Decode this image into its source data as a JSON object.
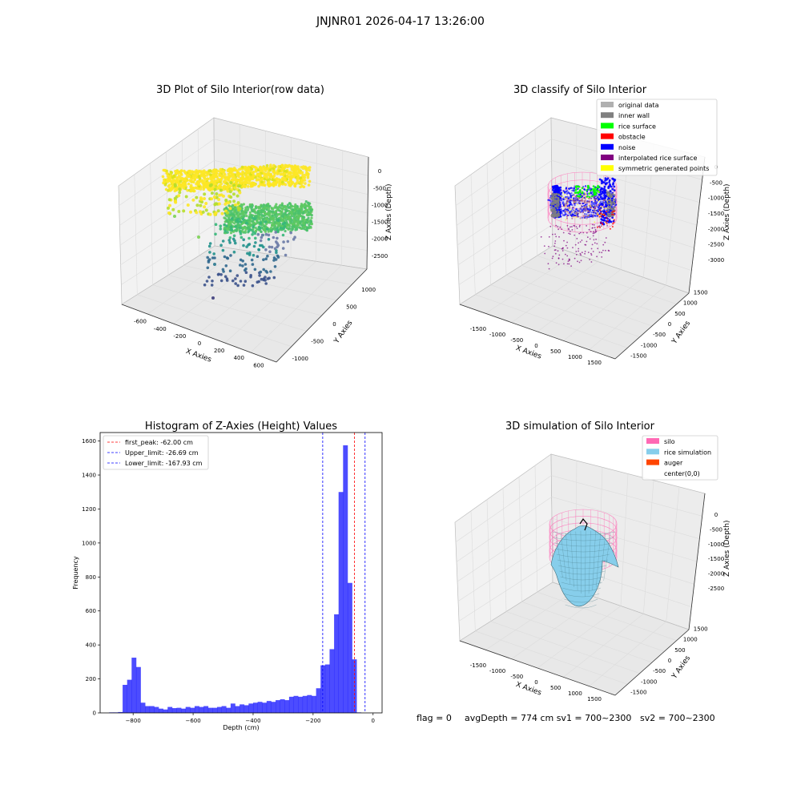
{
  "suptitle": "JNJNR01 2026-04-17 13:26:00",
  "colors": {
    "grey": "#b0b0b0",
    "darkgrey": "#808080",
    "green": "#00ff00",
    "red": "#ff0000",
    "blue": "#0000ff",
    "purple": "#800080",
    "yellow": "#ffff00",
    "pink": "#ff69b4",
    "skyblue": "#87ceeb",
    "orange": "#ff4500",
    "hist_bar": "#0000ff",
    "viridis_yellow": "#fde725",
    "viridis_green": "#5ec962",
    "viridis_teal": "#21918c",
    "viridis_blue": "#3b528b",
    "viridis_purple": "#440154"
  },
  "chart_data": [
    {
      "type": "scatter",
      "title": "3D Plot of Silo Interior(row data)",
      "xlabel": "X Axies",
      "ylabel": "Y Axies",
      "zlabel": "Z Axies (Depth)",
      "x_ticks": [
        "-600",
        "-400",
        "-200",
        "0",
        "200",
        "400",
        "600"
      ],
      "y_ticks": [
        "-1000",
        "-500",
        "0",
        "500",
        "1000"
      ],
      "z_ticks": [
        "0",
        "-500",
        "-1000",
        "-1500",
        "-2000",
        "-2500"
      ],
      "grid": true
    },
    {
      "type": "scatter",
      "title": "3D classify of Silo Interior",
      "xlabel": "X Axies",
      "ylabel": "Y Axies",
      "zlabel": "Z Axies (Depth)",
      "x_ticks": [
        "-1500",
        "-1000",
        "-500",
        "0",
        "500",
        "1000",
        "1500"
      ],
      "y_ticks": [
        "-1500",
        "-1000",
        "-500",
        "0",
        "500",
        "1000",
        "1500"
      ],
      "z_ticks": [
        "0",
        "-500",
        "-1000",
        "-1500",
        "-2000",
        "-2500",
        "-3000"
      ],
      "legend": [
        "original data",
        "inner wall",
        "rice surface",
        "obstacle",
        "noise",
        "interpolated rice surface",
        "symmetric generated points"
      ],
      "legend_position": "top-right",
      "grid": true
    },
    {
      "type": "bar",
      "title": "Histogram of Z-Axies (Height) Values",
      "xlabel": "Depth (cm)",
      "ylabel": "Frequency",
      "xlim": [
        -910,
        30
      ],
      "ylim": [
        0,
        1650
      ],
      "x_ticks": [
        -800,
        -600,
        -400,
        -200,
        0
      ],
      "y_ticks": [
        0,
        200,
        400,
        600,
        800,
        1000,
        1200,
        1400,
        1600
      ],
      "bin_width": 15,
      "bins_start": [
        -880,
        -865,
        -850,
        -835,
        -820,
        -805,
        -790,
        -775,
        -760,
        -745,
        -730,
        -715,
        -700,
        -685,
        -670,
        -655,
        -640,
        -625,
        -610,
        -595,
        -580,
        -565,
        -550,
        -535,
        -520,
        -505,
        -490,
        -475,
        -460,
        -445,
        -430,
        -415,
        -400,
        -385,
        -370,
        -355,
        -340,
        -325,
        -310,
        -295,
        -280,
        -265,
        -250,
        -235,
        -220,
        -205,
        -190,
        -175,
        -160,
        -145,
        -130,
        -115,
        -100,
        -85,
        -70,
        -55,
        -40,
        -25
      ],
      "values": [
        3,
        3,
        5,
        165,
        195,
        325,
        270,
        60,
        40,
        40,
        35,
        25,
        20,
        35,
        28,
        30,
        25,
        35,
        30,
        40,
        35,
        40,
        30,
        30,
        35,
        40,
        30,
        55,
        40,
        50,
        45,
        55,
        60,
        65,
        60,
        70,
        65,
        75,
        80,
        75,
        95,
        100,
        95,
        100,
        105,
        100,
        145,
        280,
        285,
        375,
        580,
        1300,
        1575,
        765,
        315,
        3,
        0,
        0
      ],
      "vlines": [
        {
          "label": "first_peak: -62.00 cm",
          "x": -62.0,
          "color": "#ff0000"
        },
        {
          "label": "Upper_limit: -26.69 cm",
          "x": -26.69,
          "color": "#0000ff"
        },
        {
          "label": "Lower_limit: -167.93 cm",
          "x": -167.93,
          "color": "#0000ff"
        }
      ],
      "legend_position": "top-left",
      "grid": false
    },
    {
      "type": "scatter",
      "title": "3D simulation of Silo Interior",
      "xlabel": "X Axies",
      "ylabel": "Y Axies",
      "zlabel": "Z Axies (Depth)",
      "x_ticks": [
        "-1500",
        "-1000",
        "-500",
        "0",
        "500",
        "1000",
        "1500"
      ],
      "y_ticks": [
        "-1500",
        "-1000",
        "-500",
        "0",
        "500",
        "1000",
        "1500"
      ],
      "z_ticks": [
        "0",
        "-500",
        "-1000",
        "-1500",
        "-2000",
        "-2500"
      ],
      "legend": [
        "silo",
        "rice simulation",
        "auger",
        "center(0,0)"
      ],
      "legend_position": "top-right",
      "grid": true
    }
  ],
  "status": {
    "flag": "flag = 0",
    "avg": "avgDepth = 774 cm  sv1 = 700~2300",
    "sv2": "sv2 = 700~2300"
  }
}
